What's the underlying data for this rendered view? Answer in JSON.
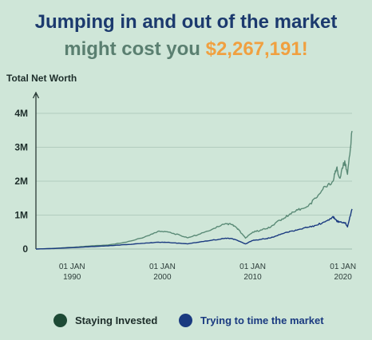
{
  "title": {
    "line1": "Jumping in and out of the market",
    "line2_prefix": "might cost you ",
    "amount": "$2,267,191!"
  },
  "colors": {
    "background": "#cfe6d8",
    "staying": "#5a8a76",
    "timing": "#1a3a80",
    "amount": "#f0a040",
    "title": "#1c3a6e"
  },
  "chart_data": {
    "type": "line",
    "ylabel": "Total Net Worth",
    "ylim": [
      0,
      4000000
    ],
    "xlim": [
      1986,
      2021
    ],
    "yticks": [
      {
        "value": 0,
        "label": "0"
      },
      {
        "value": 1000000,
        "label": "1M"
      },
      {
        "value": 2000000,
        "label": "2M"
      },
      {
        "value": 3000000,
        "label": "3M"
      },
      {
        "value": 4000000,
        "label": "4M"
      }
    ],
    "xticks": [
      {
        "value": 1990,
        "line1": "01 JAN",
        "line2": "1990"
      },
      {
        "value": 2000,
        "line1": "01 JAN",
        "line2": "2000"
      },
      {
        "value": 2010,
        "line1": "01 JAN",
        "line2": "2010"
      },
      {
        "value": 2020,
        "line1": "01 JAN",
        "line2": "2020"
      }
    ],
    "grid": true,
    "legend_position": "bottom",
    "series": [
      {
        "name": "Staying Invested",
        "legend_color": "#1d4a35",
        "line_color": "#5a8a76",
        "x": [
          1986,
          1988,
          1990,
          1992,
          1994,
          1996,
          1998,
          1999.5,
          2000.5,
          2002,
          2002.8,
          2004,
          2005.5,
          2007,
          2007.8,
          2008.5,
          2009.2,
          2010,
          2011,
          2012,
          2013,
          2014,
          2015,
          2016,
          2017,
          2018,
          2018.9,
          2019.3,
          2019.6,
          2020.2,
          2020.5,
          2021
        ],
        "values": [
          0,
          20000,
          50000,
          90000,
          120000,
          200000,
          350000,
          520000,
          510000,
          400000,
          330000,
          430000,
          580000,
          750000,
          720000,
          550000,
          320000,
          500000,
          560000,
          650000,
          850000,
          1000000,
          1150000,
          1250000,
          1500000,
          1850000,
          2000000,
          2400000,
          2100000,
          2600000,
          2200000,
          3480000
        ]
      },
      {
        "name": "Trying to time the market",
        "legend_color": "#1a3a80",
        "line_color": "#1a3a80",
        "x": [
          1986,
          1988,
          1990,
          1992,
          1994,
          1996,
          1998,
          1999.5,
          2000.5,
          2002,
          2002.8,
          2004,
          2005.5,
          2007,
          2007.8,
          2008.5,
          2009.2,
          2010,
          2011,
          2012,
          2013,
          2014,
          2015,
          2016,
          2017,
          2018,
          2018.9,
          2019.3,
          2019.6,
          2020.2,
          2020.5,
          2021
        ],
        "values": [
          0,
          15000,
          40000,
          70000,
          95000,
          130000,
          170000,
          200000,
          195000,
          170000,
          150000,
          200000,
          260000,
          320000,
          300000,
          230000,
          150000,
          250000,
          290000,
          330000,
          420000,
          500000,
          570000,
          630000,
          700000,
          800000,
          960000,
          820000,
          800000,
          780000,
          650000,
          1180000
        ]
      }
    ]
  }
}
